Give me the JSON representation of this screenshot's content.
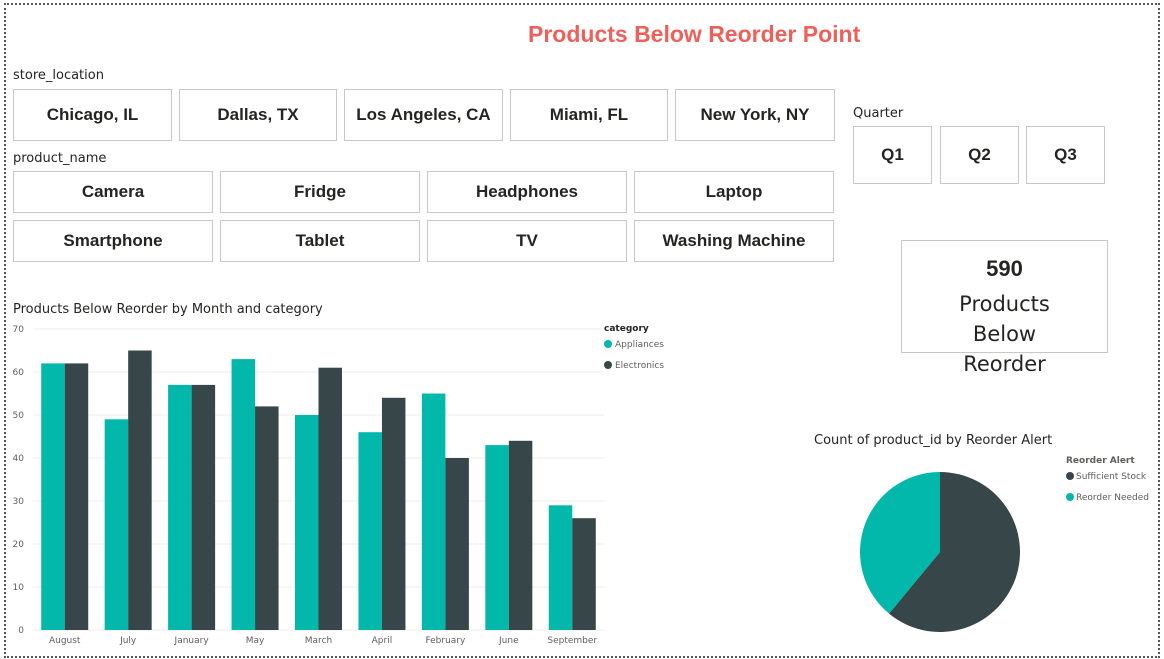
{
  "title": "Products Below Reorder Point",
  "store_location": {
    "label": "store_location",
    "items": [
      "Chicago, IL",
      "Dallas, TX",
      "Los Angeles, CA",
      "Miami, FL",
      "New York, NY"
    ]
  },
  "product_name": {
    "label": "product_name",
    "items": [
      "Camera",
      "Fridge",
      "Headphones",
      "Laptop",
      "Smartphone",
      "Tablet",
      "TV",
      "Washing Machine"
    ]
  },
  "quarter": {
    "label": "Quarter",
    "items": [
      "Q1",
      "Q2",
      "Q3"
    ]
  },
  "kpi": {
    "value": "590",
    "label": "Products Below Reorder"
  },
  "colors": {
    "teal": "#01b8aa",
    "dark": "#374649",
    "title": "#f0605a"
  },
  "chart_data": [
    {
      "type": "bar",
      "title": "Products Below Reorder by Month and category",
      "legend_title": "category",
      "legend_position": "top-right",
      "categories": [
        "August",
        "July",
        "January",
        "May",
        "March",
        "April",
        "February",
        "June",
        "September"
      ],
      "series": [
        {
          "name": "Appliances",
          "color": "#01b8aa",
          "values": [
            62,
            49,
            57,
            63,
            50,
            46,
            55,
            43,
            29
          ]
        },
        {
          "name": "Electronics",
          "color": "#374649",
          "values": [
            62,
            65,
            57,
            52,
            61,
            54,
            40,
            44,
            26
          ]
        }
      ],
      "yticks": [
        0,
        10,
        20,
        30,
        40,
        50,
        60,
        70
      ],
      "ylim": [
        0,
        70
      ],
      "grid": true
    },
    {
      "type": "pie",
      "title": "Count of product_id by Reorder Alert",
      "legend_title": "Reorder Alert",
      "legend_position": "right",
      "labels": [
        "Sufficient Stock",
        "Reorder Needed"
      ],
      "values": [
        61,
        39
      ],
      "colors": [
        "#374649",
        "#01b8aa"
      ]
    }
  ]
}
